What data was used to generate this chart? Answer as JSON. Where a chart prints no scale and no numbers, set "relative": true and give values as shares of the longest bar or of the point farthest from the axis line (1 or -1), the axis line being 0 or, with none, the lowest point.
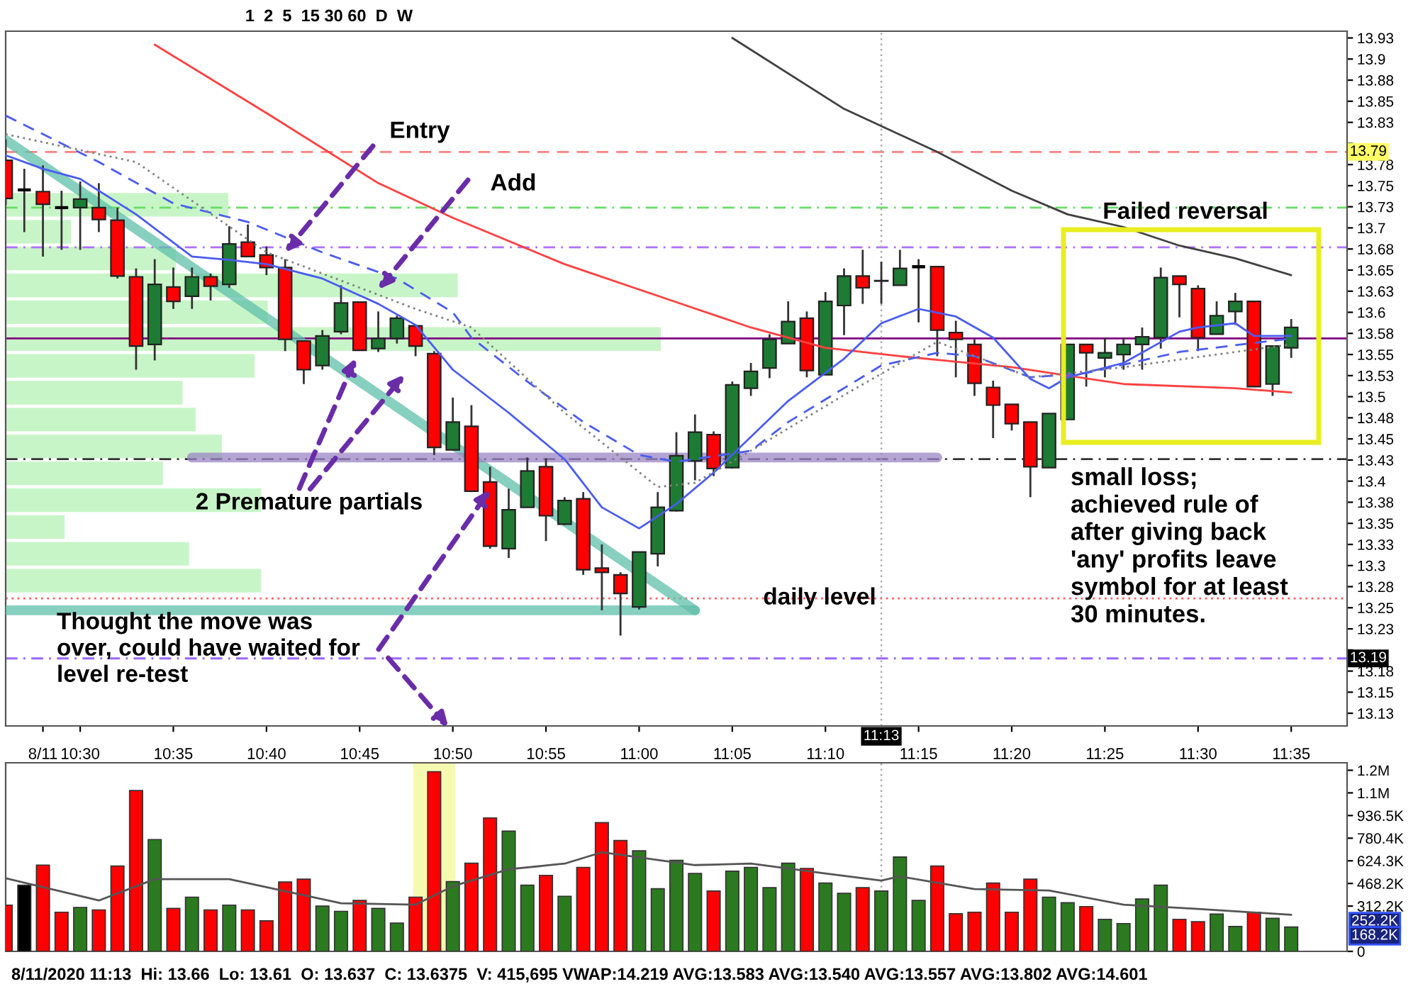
{
  "chart_data": [
    {
      "type": "candlestick",
      "x": [
        "2020-08-11T10:26",
        "2020-08-11T10:27",
        "2020-08-11T10:28",
        "2020-08-11T10:29",
        "2020-08-11T10:30",
        "2020-08-11T10:31",
        "2020-08-11T10:32",
        "2020-08-11T10:33",
        "2020-08-11T10:34",
        "2020-08-11T10:35",
        "2020-08-11T10:36",
        "2020-08-11T10:37",
        "2020-08-11T10:38",
        "2020-08-11T10:39",
        "2020-08-11T10:40",
        "2020-08-11T10:41",
        "2020-08-11T10:42",
        "2020-08-11T10:43",
        "2020-08-11T10:44",
        "2020-08-11T10:45",
        "2020-08-11T10:46",
        "2020-08-11T10:47",
        "2020-08-11T10:48",
        "2020-08-11T10:49",
        "2020-08-11T10:50",
        "2020-08-11T10:51",
        "2020-08-11T10:52",
        "2020-08-11T10:53",
        "2020-08-11T10:54",
        "2020-08-11T10:55",
        "2020-08-11T10:56",
        "2020-08-11T10:57",
        "2020-08-11T10:58",
        "2020-08-11T10:59",
        "2020-08-11T11:00",
        "2020-08-11T11:01",
        "2020-08-11T11:02",
        "2020-08-11T11:03",
        "2020-08-11T11:04",
        "2020-08-11T11:05",
        "2020-08-11T11:06",
        "2020-08-11T11:07",
        "2020-08-11T11:08",
        "2020-08-11T11:09",
        "2020-08-11T11:10",
        "2020-08-11T11:11",
        "2020-08-11T11:12",
        "2020-08-11T11:13",
        "2020-08-11T11:14",
        "2020-08-11T11:15",
        "2020-08-11T11:16",
        "2020-08-11T11:17",
        "2020-08-11T11:18",
        "2020-08-11T11:19",
        "2020-08-11T11:20",
        "2020-08-11T11:21",
        "2020-08-11T11:22",
        "2020-08-11T11:23",
        "2020-08-11T11:24",
        "2020-08-11T11:25",
        "2020-08-11T11:26",
        "2020-08-11T11:27",
        "2020-08-11T11:28",
        "2020-08-11T11:29",
        "2020-08-11T11:30",
        "2020-08-11T11:31",
        "2020-08-11T11:32",
        "2020-08-11T11:33",
        "2020-08-11T11:34",
        "2020-08-11T11:35"
      ],
      "ohlc": [
        [
          13.78,
          13.805,
          13.727,
          13.735
        ],
        [
          13.745,
          13.77,
          13.695,
          13.745
        ],
        [
          13.743,
          13.774,
          13.666,
          13.728
        ],
        [
          13.724,
          13.744,
          13.674,
          13.724
        ],
        [
          13.724,
          13.755,
          13.674,
          13.734
        ],
        [
          13.724,
          13.753,
          13.695,
          13.71
        ],
        [
          13.709,
          13.724,
          13.64,
          13.643
        ],
        [
          13.642,
          13.652,
          13.532,
          13.56
        ],
        [
          13.562,
          13.663,
          13.543,
          13.633
        ],
        [
          13.63,
          13.653,
          13.604,
          13.613
        ],
        [
          13.619,
          13.653,
          13.604,
          13.642
        ],
        [
          13.642,
          13.646,
          13.614,
          13.631
        ],
        [
          13.633,
          13.702,
          13.629,
          13.681
        ],
        [
          13.683,
          13.704,
          13.666,
          13.666
        ],
        [
          13.668,
          13.678,
          13.644,
          13.653
        ],
        [
          13.653,
          13.663,
          13.554,
          13.568
        ],
        [
          13.566,
          13.566,
          13.515,
          13.532
        ],
        [
          13.537,
          13.579,
          13.532,
          13.572
        ],
        [
          13.577,
          13.632,
          13.574,
          13.611
        ],
        [
          13.612,
          13.612,
          13.555,
          13.555
        ],
        [
          13.557,
          13.601,
          13.553,
          13.569
        ],
        [
          13.569,
          13.596,
          13.563,
          13.593
        ],
        [
          13.584,
          13.584,
          13.548,
          13.56
        ],
        [
          13.551,
          13.554,
          13.431,
          13.44
        ],
        [
          13.437,
          13.499,
          13.437,
          13.47
        ],
        [
          13.465,
          13.49,
          13.387,
          13.388
        ],
        [
          13.399,
          13.417,
          13.32,
          13.323
        ],
        [
          13.32,
          13.391,
          13.309,
          13.366
        ],
        [
          13.369,
          13.428,
          13.369,
          13.412
        ],
        [
          13.417,
          13.427,
          13.329,
          13.359
        ],
        [
          13.349,
          13.381,
          13.348,
          13.377
        ],
        [
          13.379,
          13.387,
          13.289,
          13.295
        ],
        [
          13.297,
          13.325,
          13.247,
          13.292
        ],
        [
          13.289,
          13.292,
          13.217,
          13.267
        ],
        [
          13.251,
          13.316,
          13.248,
          13.316
        ],
        [
          13.314,
          13.387,
          13.299,
          13.369
        ],
        [
          13.365,
          13.458,
          13.364,
          13.43
        ],
        [
          13.424,
          13.479,
          13.401,
          13.458
        ],
        [
          13.455,
          13.459,
          13.406,
          13.415
        ],
        [
          13.416,
          13.518,
          13.415,
          13.514
        ],
        [
          13.51,
          13.54,
          13.501,
          13.53
        ],
        [
          13.534,
          13.574,
          13.522,
          13.568
        ],
        [
          13.563,
          13.613,
          13.563,
          13.589
        ],
        [
          13.593,
          13.601,
          13.523,
          13.531
        ],
        [
          13.526,
          13.624,
          13.526,
          13.613
        ],
        [
          13.608,
          13.652,
          13.573,
          13.643
        ],
        [
          13.643,
          13.674,
          13.61,
          13.629
        ],
        [
          13.637,
          13.66,
          13.61,
          13.6375
        ],
        [
          13.632,
          13.674,
          13.632,
          13.652
        ],
        [
          13.654,
          13.663,
          13.588,
          13.654
        ],
        [
          13.654,
          13.654,
          13.548,
          13.579
        ],
        [
          13.576,
          13.59,
          13.523,
          13.568
        ],
        [
          13.562,
          13.568,
          13.501,
          13.516
        ],
        [
          13.511,
          13.519,
          13.451,
          13.49
        ],
        [
          13.491,
          13.491,
          13.46,
          13.468
        ],
        [
          13.47,
          13.47,
          13.381,
          13.417
        ],
        [
          13.416,
          13.48,
          13.416,
          13.48
        ],
        [
          13.473,
          13.562,
          13.473,
          13.562
        ],
        [
          13.562,
          13.562,
          13.512,
          13.552
        ],
        [
          13.546,
          13.57,
          13.523,
          13.552
        ],
        [
          13.55,
          13.57,
          13.532,
          13.562
        ],
        [
          13.562,
          13.582,
          13.532,
          13.571
        ],
        [
          13.57,
          13.653,
          13.557,
          13.641
        ],
        [
          13.643,
          13.643,
          13.594,
          13.633
        ],
        [
          13.628,
          13.632,
          13.554,
          13.57
        ],
        [
          13.574,
          13.613,
          13.574,
          13.596
        ],
        [
          13.601,
          13.623,
          13.585,
          13.613
        ],
        [
          13.613,
          13.613,
          13.512,
          13.512
        ],
        [
          13.515,
          13.56,
          13.501,
          13.56
        ],
        [
          13.558,
          13.592,
          13.546,
          13.582
        ]
      ],
      "colors": [
        "#ff0000",
        "#000000",
        "#ff0000",
        "#000000",
        "#1e7b34",
        "#ff0000",
        "#ff0000",
        "#ff0000",
        "#1e7b34",
        "#ff0000",
        "#1e7b34",
        "#ff0000",
        "#1e7b34",
        "#ff0000",
        "#ff0000",
        "#ff0000",
        "#ff0000",
        "#1e7b34",
        "#1e7b34",
        "#ff0000",
        "#1e7b34",
        "#1e7b34",
        "#ff0000",
        "#ff0000",
        "#1e7b34",
        "#ff0000",
        "#ff0000",
        "#1e7b34",
        "#1e7b34",
        "#ff0000",
        "#1e7b34",
        "#ff0000",
        "#ff0000",
        "#ff0000",
        "#1e7b34",
        "#1e7b34",
        "#1e7b34",
        "#1e7b34",
        "#ff0000",
        "#1e7b34",
        "#1e7b34",
        "#1e7b34",
        "#1e7b34",
        "#ff0000",
        "#1e7b34",
        "#1e7b34",
        "#ff0000",
        "#000000",
        "#1e7b34",
        "#000000",
        "#ff0000",
        "#ff0000",
        "#ff0000",
        "#ff0000",
        "#ff0000",
        "#ff0000",
        "#1e7b34",
        "#1e7b34",
        "#ff0000",
        "#1e7b34",
        "#1e7b34",
        "#1e7b34",
        "#1e7b34",
        "#ff0000",
        "#ff0000",
        "#1e7b34",
        "#1e7b34",
        "#ff0000",
        "#1e7b34",
        "#1e7b34"
      ],
      "series": [
        {
          "type": "line",
          "color": "#ff4040",
          "x": [
            "2020-08-11T10:34",
            "2020-08-11T10:40",
            "2020-08-11T10:46",
            "2020-08-11T10:50",
            "2020-08-11T10:56",
            "2020-08-11T11:02",
            "2020-08-11T11:06",
            "2020-08-11T11:10",
            "2020-08-11T11:14",
            "2020-08-11T11:20",
            "2020-08-11T11:26",
            "2020-08-11T11:32",
            "2020-08-11T11:35"
          ],
          "values": [
            13.917,
            13.836,
            13.753,
            13.712,
            13.657,
            13.612,
            13.582,
            13.558,
            13.548,
            13.535,
            13.515,
            13.51,
            13.505
          ]
        },
        {
          "type": "line",
          "color": "#404040",
          "x": [
            "2020-08-11T11:05",
            "2020-08-11T11:11",
            "2020-08-11T11:16",
            "2020-08-11T11:20",
            "2020-08-11T11:23",
            "2020-08-11T11:26",
            "2020-08-11T11:29",
            "2020-08-11T11:32",
            "2020-08-11T11:35"
          ],
          "values": [
            13.925,
            13.841,
            13.79,
            13.744,
            13.716,
            13.701,
            13.679,
            13.664,
            13.644
          ]
        },
        {
          "type": "line",
          "color": "#4a5cf0",
          "x": [
            "2020-08-11T10:26",
            "2020-08-11T10:28",
            "2020-08-11T10:30",
            "2020-08-11T10:33",
            "2020-08-11T10:36",
            "2020-08-11T10:38",
            "2020-08-11T10:40",
            "2020-08-11T10:43",
            "2020-08-11T10:46",
            "2020-08-11T10:48",
            "2020-08-11T10:50",
            "2020-08-11T10:53",
            "2020-08-11T10:56",
            "2020-08-11T10:58",
            "2020-08-11T11:00",
            "2020-08-11T11:02",
            "2020-08-11T11:04",
            "2020-08-11T11:08",
            "2020-08-11T11:11",
            "2020-08-11T11:13",
            "2020-08-11T11:15",
            "2020-08-11T11:17",
            "2020-08-11T11:19",
            "2020-08-11T11:21",
            "2020-08-11T11:22",
            "2020-08-11T11:23",
            "2020-08-11T11:26",
            "2020-08-11T11:29",
            "2020-08-11T11:30",
            "2020-08-11T11:32",
            "2020-08-11T11:33",
            "2020-08-11T11:35"
          ],
          "values": [
            13.786,
            13.77,
            13.758,
            13.716,
            13.666,
            13.662,
            13.657,
            13.64,
            13.61,
            13.585,
            13.532,
            13.481,
            13.426,
            13.369,
            13.344,
            13.373,
            13.41,
            13.495,
            13.545,
            13.587,
            13.604,
            13.595,
            13.57,
            13.521,
            13.51,
            13.523,
            13.54,
            13.577,
            13.582,
            13.587,
            13.572,
            13.572
          ]
        },
        {
          "type": "line",
          "color": "#4a5cf0",
          "line_style": "dashed",
          "x": [
            "2020-08-11T10:26",
            "2020-08-11T10:31",
            "2020-08-11T10:35",
            "2020-08-11T10:39",
            "2020-08-11T10:43",
            "2020-08-11T10:47",
            "2020-08-11T10:50",
            "2020-08-11T10:51",
            "2020-08-11T10:54",
            "2020-08-11T10:57",
            "2020-08-11T11:00",
            "2020-08-11T11:02",
            "2020-08-11T11:06",
            "2020-08-11T11:08",
            "2020-08-11T11:13",
            "2020-08-11T11:16",
            "2020-08-11T11:18",
            "2020-08-11T11:21",
            "2020-08-11T11:24",
            "2020-08-11T11:29",
            "2020-08-11T11:35"
          ],
          "values": [
            13.833,
            13.778,
            13.729,
            13.707,
            13.671,
            13.64,
            13.6,
            13.57,
            13.518,
            13.47,
            13.431,
            13.423,
            13.436,
            13.47,
            13.537,
            13.552,
            13.548,
            13.523,
            13.528,
            13.553,
            13.569
          ]
        },
        {
          "type": "line",
          "color": "#808080",
          "line_style": "dotted",
          "x": [
            "2020-08-11T10:26",
            "2020-08-11T10:33",
            "2020-08-11T10:40",
            "2020-08-11T10:48",
            "2020-08-11T10:51",
            "2020-08-11T10:56",
            "2020-08-11T11:01",
            "2020-08-11T11:03",
            "2020-08-11T11:06",
            "2020-08-11T11:11",
            "2020-08-11T11:16",
            "2020-08-11T11:21",
            "2020-08-11T11:26",
            "2020-08-11T11:35"
          ],
          "values": [
            13.811,
            13.778,
            13.671,
            13.604,
            13.582,
            13.481,
            13.393,
            13.398,
            13.436,
            13.502,
            13.565,
            13.523,
            13.535,
            13.562
          ]
        },
        {
          "type": "line",
          "color": "#5fbfa9",
          "x": [
            "2020-08-11T10:26",
            "2020-08-11T11:03"
          ],
          "values": [
            13.804,
            13.247
          ]
        },
        {
          "type": "line",
          "color": "#5fbfa9",
          "x": [
            "2020-08-11T10:26",
            "2020-08-11T11:03"
          ],
          "values": [
            13.247,
            13.247
          ]
        },
        {
          "type": "line",
          "color": "#9b85c4",
          "x": [
            "2020-08-11T10:36",
            "2020-08-11T11:16"
          ],
          "values": [
            13.428,
            13.428
          ]
        }
      ],
      "xlim": [
        "2020-08-11T10:26",
        "2020-08-11T11:38"
      ],
      "xticks": [
        {
          "value": "2020-08-11T10:28",
          "label": "8/11"
        },
        {
          "value": "2020-08-11T10:30",
          "label": "10:30"
        },
        {
          "value": "2020-08-11T10:35",
          "label": "10:35"
        },
        {
          "value": "2020-08-11T10:40",
          "label": "10:40"
        },
        {
          "value": "2020-08-11T10:45",
          "label": "10:45"
        },
        {
          "value": "2020-08-11T10:50",
          "label": "10:50"
        },
        {
          "value": "2020-08-11T10:55",
          "label": "10:55"
        },
        {
          "value": "2020-08-11T11:00",
          "label": "11:00"
        },
        {
          "value": "2020-08-11T11:05",
          "label": "11:05"
        },
        {
          "value": "2020-08-11T11:10",
          "label": "11:10"
        },
        {
          "value": "2020-08-11T11:15",
          "label": "11:15"
        },
        {
          "value": "2020-08-11T11:20",
          "label": "11:20"
        },
        {
          "value": "2020-08-11T11:25",
          "label": "11:25"
        },
        {
          "value": "2020-08-11T11:30",
          "label": "11:30"
        },
        {
          "value": "2020-08-11T11:35",
          "label": "11:35"
        }
      ],
      "ylim": [
        13.11,
        13.933
      ],
      "yticks": [
        {
          "value": 13.925,
          "label": "13.93"
        },
        {
          "value": 13.9,
          "label": "13.9"
        },
        {
          "value": 13.875,
          "label": "13.88"
        },
        {
          "value": 13.85,
          "label": "13.85"
        },
        {
          "value": 13.825,
          "label": "13.83"
        },
        {
          "value": 13.8,
          "label": null
        },
        {
          "value": 13.775,
          "label": "13.78"
        },
        {
          "value": 13.75,
          "label": "13.75"
        },
        {
          "value": 13.725,
          "label": "13.73"
        },
        {
          "value": 13.7,
          "label": "13.7"
        },
        {
          "value": 13.675,
          "label": "13.68"
        },
        {
          "value": 13.65,
          "label": "13.65"
        },
        {
          "value": 13.625,
          "label": "13.63"
        },
        {
          "value": 13.6,
          "label": "13.6"
        },
        {
          "value": 13.575,
          "label": "13.58"
        },
        {
          "value": 13.55,
          "label": "13.55"
        },
        {
          "value": 13.525,
          "label": "13.53"
        },
        {
          "value": 13.5,
          "label": "13.5"
        },
        {
          "value": 13.475,
          "label": "13.48"
        },
        {
          "value": 13.45,
          "label": "13.45"
        },
        {
          "value": 13.425,
          "label": "13.43"
        },
        {
          "value": 13.4,
          "label": "13.4"
        },
        {
          "value": 13.375,
          "label": "13.38"
        },
        {
          "value": 13.35,
          "label": "13.35"
        },
        {
          "value": 13.325,
          "label": "13.33"
        },
        {
          "value": 13.3,
          "label": "13.3"
        },
        {
          "value": 13.275,
          "label": "13.28"
        },
        {
          "value": 13.25,
          "label": "13.25"
        },
        {
          "value": 13.225,
          "label": "13.23"
        },
        {
          "value": 13.2,
          "label": null
        },
        {
          "value": 13.175,
          "label": "13.18"
        },
        {
          "value": 13.15,
          "label": "13.15"
        },
        {
          "value": 13.125,
          "label": "13.13"
        }
      ],
      "ref_lines": [
        {
          "axis": "y",
          "value": 13.79,
          "label": "13.79",
          "color": "#ff8080",
          "line_style": "dashed"
        },
        {
          "axis": "y",
          "value": 13.724,
          "color": "#66dd66",
          "line_style": "dashdot"
        },
        {
          "axis": "y",
          "value": 13.677,
          "color": "#b070ff",
          "line_style": "dashdot"
        },
        {
          "axis": "y",
          "value": 13.569,
          "color": "#800080",
          "line_style": "solid"
        },
        {
          "axis": "y",
          "value": 13.426,
          "color": "#333333",
          "line_style": "dashdot"
        },
        {
          "axis": "y",
          "value": 13.261,
          "color": "#ff6060",
          "line_style": "dotted"
        },
        {
          "axis": "y",
          "value": 13.19,
          "label": "13.19",
          "color": "#9966ff",
          "line_style": "dashdot"
        },
        {
          "axis": "x",
          "value": "2020-08-11T11:13",
          "label": "11:13",
          "color": "#aaaaaa",
          "line_style": "dotted"
        }
      ],
      "annotations": [
        {
          "text": "Entry",
          "x": "2020-08-11T10:41",
          "y": 13.671
        },
        {
          "text": "Add",
          "x": "2020-08-11T10:46",
          "y": 13.627
        },
        "2 Premature partials",
        {
          "text": "Thought the move was\nover, could have waited for\nlevel re-test",
          "x": "2020-08-11T10:52",
          "y": 13.39
        },
        "daily level",
        "Failed reversal",
        "small loss;\nachieved rule of\nafter giving back\n'any' profits leave\nsymbol for at least\n30 minutes.",
        "1  2  5  15 30 60  D  W"
      ]
    },
    {
      "type": "bar",
      "orientation": "horizontal",
      "relative": true,
      "color": "#c8f5c8",
      "categories": [
        null,
        null,
        null,
        null,
        null,
        null,
        null,
        null,
        null,
        null,
        null,
        null,
        null,
        null,
        null
      ],
      "values": [
        0.34,
        0.1,
        0.26,
        0.69,
        0.4,
        1,
        0.38,
        0.27,
        0.29,
        0.33,
        0.24,
        0.39,
        0.09,
        0.28,
        0.39
      ]
    },
    {
      "type": "bar",
      "x": [
        "2020-08-11T10:26",
        "2020-08-11T10:27",
        "2020-08-11T10:28",
        "2020-08-11T10:29",
        "2020-08-11T10:30",
        "2020-08-11T10:31",
        "2020-08-11T10:32",
        "2020-08-11T10:33",
        "2020-08-11T10:34",
        "2020-08-11T10:35",
        "2020-08-11T10:36",
        "2020-08-11T10:37",
        "2020-08-11T10:38",
        "2020-08-11T10:39",
        "2020-08-11T10:40",
        "2020-08-11T10:41",
        "2020-08-11T10:42",
        "2020-08-11T10:43",
        "2020-08-11T10:44",
        "2020-08-11T10:45",
        "2020-08-11T10:46",
        "2020-08-11T10:47",
        "2020-08-11T10:48",
        "2020-08-11T10:49",
        "2020-08-11T10:50",
        "2020-08-11T10:51",
        "2020-08-11T10:52",
        "2020-08-11T10:53",
        "2020-08-11T10:54",
        "2020-08-11T10:55",
        "2020-08-11T10:56",
        "2020-08-11T10:57",
        "2020-08-11T10:58",
        "2020-08-11T10:59",
        "2020-08-11T11:00",
        "2020-08-11T11:01",
        "2020-08-11T11:02",
        "2020-08-11T11:03",
        "2020-08-11T11:04",
        "2020-08-11T11:05",
        "2020-08-11T11:06",
        "2020-08-11T11:07",
        "2020-08-11T11:08",
        "2020-08-11T11:09",
        "2020-08-11T11:10",
        "2020-08-11T11:11",
        "2020-08-11T11:12",
        "2020-08-11T11:13",
        "2020-08-11T11:14",
        "2020-08-11T11:15",
        "2020-08-11T11:16",
        "2020-08-11T11:17",
        "2020-08-11T11:18",
        "2020-08-11T11:19",
        "2020-08-11T11:20",
        "2020-08-11T11:21",
        "2020-08-11T11:22",
        "2020-08-11T11:23",
        "2020-08-11T11:24",
        "2020-08-11T11:25",
        "2020-08-11T11:26",
        "2020-08-11T11:27",
        "2020-08-11T11:28",
        "2020-08-11T11:29",
        "2020-08-11T11:30",
        "2020-08-11T11:31",
        "2020-08-11T11:32",
        "2020-08-11T11:33",
        "2020-08-11T11:34",
        "2020-08-11T11:35"
      ],
      "values": [
        319000,
        456000,
        595000,
        270000,
        302000,
        286000,
        588000,
        1109000,
        771000,
        296000,
        374000,
        286000,
        319000,
        286000,
        211000,
        478000,
        498000,
        312000,
        276000,
        351000,
        296000,
        195000,
        374000,
        1239000,
        481000,
        608000,
        920000,
        829000,
        456000,
        524000,
        380000,
        579000,
        888000,
        764000,
        693000,
        432000,
        627000,
        537000,
        416000,
        553000,
        579000,
        439000,
        608000,
        572000,
        471000,
        400000,
        439000,
        415695,
        651000,
        351000,
        588000,
        260000,
        270000,
        471000,
        270000,
        498000,
        374000,
        335000,
        309000,
        221000,
        192000,
        361000,
        456000,
        221000,
        205000,
        257000,
        172000,
        270000,
        228000,
        168200
      ],
      "colors": [
        "#ff0000",
        "#000000",
        "#ff0000",
        "#ff0000",
        "#2b7a1f",
        "#ff0000",
        "#ff0000",
        "#ff0000",
        "#2b7a1f",
        "#ff0000",
        "#2b7a1f",
        "#ff0000",
        "#2b7a1f",
        "#ff0000",
        "#ff0000",
        "#ff0000",
        "#ff0000",
        "#2b7a1f",
        "#2b7a1f",
        "#ff0000",
        "#2b7a1f",
        "#2b7a1f",
        "#ff0000",
        "#ff0000",
        "#2b7a1f",
        "#ff0000",
        "#ff0000",
        "#2b7a1f",
        "#2b7a1f",
        "#ff0000",
        "#2b7a1f",
        "#ff0000",
        "#ff0000",
        "#ff0000",
        "#2b7a1f",
        "#2b7a1f",
        "#2b7a1f",
        "#2b7a1f",
        "#ff0000",
        "#2b7a1f",
        "#2b7a1f",
        "#2b7a1f",
        "#2b7a1f",
        "#ff0000",
        "#2b7a1f",
        "#2b7a1f",
        "#ff0000",
        "#2b7a1f",
        "#2b7a1f",
        "#2b7a1f",
        "#ff0000",
        "#ff0000",
        "#ff0000",
        "#ff0000",
        "#ff0000",
        "#ff0000",
        "#2b7a1f",
        "#2b7a1f",
        "#ff0000",
        "#2b7a1f",
        "#2b7a1f",
        "#2b7a1f",
        "#2b7a1f",
        "#ff0000",
        "#ff0000",
        "#2b7a1f",
        "#2b7a1f",
        "#ff0000",
        "#2b7a1f",
        "#2b7a1f"
      ],
      "series": [
        {
          "type": "line",
          "color": "#555555",
          "x": [
            "2020-08-11T10:26",
            "2020-08-11T10:31",
            "2020-08-11T10:34",
            "2020-08-11T10:38",
            "2020-08-11T10:44",
            "2020-08-11T10:48",
            "2020-08-11T10:50",
            "2020-08-11T10:53",
            "2020-08-11T10:56",
            "2020-08-11T10:58",
            "2020-08-11T11:03",
            "2020-08-11T11:06",
            "2020-08-11T11:10",
            "2020-08-11T11:13",
            "2020-08-11T11:14",
            "2020-08-11T11:18",
            "2020-08-11T11:22",
            "2020-08-11T11:26",
            "2020-08-11T11:30",
            "2020-08-11T11:35"
          ],
          "values": [
            504000,
            351000,
            498000,
            498000,
            332000,
            322000,
            449000,
            566000,
            605000,
            683000,
            595000,
            605000,
            537000,
            488000,
            517000,
            429000,
            420000,
            322000,
            293000,
            252200
          ]
        }
      ],
      "xlim": [
        "2020-08-11T10:26",
        "2020-08-11T11:38"
      ],
      "ylim": [
        0,
        1300000
      ],
      "yticks": [
        0,
        {
          "value": 312200,
          "label": "312.2K"
        },
        {
          "value": 468200,
          "label": "468.2K"
        },
        {
          "value": 624300,
          "label": "624.3K"
        },
        {
          "value": 780400,
          "label": "780.4K"
        },
        {
          "value": 936500,
          "label": "936.5K"
        },
        {
          "value": 1092600,
          "label": "1.1M"
        },
        {
          "value": 1248700,
          "label": "1.2M"
        }
      ],
      "tick_labels": "y",
      "bands": [
        {
          "axis": "x",
          "from": "2020-08-11T10:48",
          "to": "2020-08-11T10:50",
          "color": "#e8ee20"
        }
      ],
      "ref_lines": [
        {
          "axis": "x",
          "value": "2020-08-11T11:13",
          "color": "#aaaaaa",
          "line_style": "dotted"
        }
      ],
      "annotations": [
        "8/11/2020 11:13  Hi: 13.66  Lo: 13.61  O: 13.637  C: 13.6375  V: 415,695 VWAP:14.219 AVG:13.583 AVG:13.540 AVG:13.557 AVG:13.802 AVG:14.601",
        "252.2K",
        "168.2K"
      ]
    }
  ]
}
